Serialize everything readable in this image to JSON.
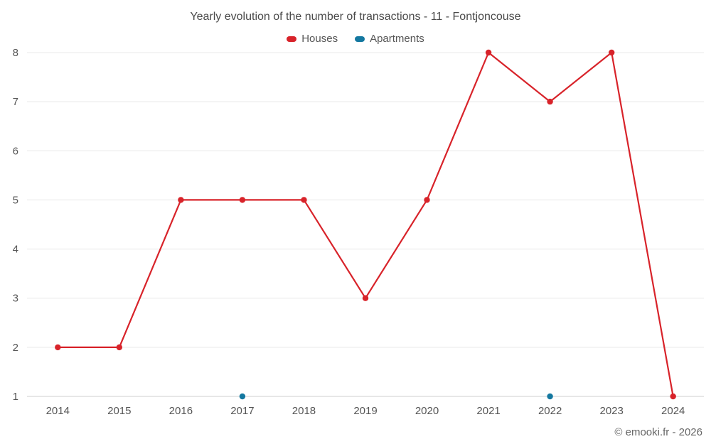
{
  "chart": {
    "title": "Yearly evolution of the number of transactions - 11 - Fontjoncouse",
    "footer": "© emooki.fr - 2026"
  },
  "chart_data": {
    "type": "line",
    "title": "Yearly evolution of the number of transactions - 11 - Fontjoncouse",
    "categories": [
      "2014",
      "2015",
      "2016",
      "2017",
      "2018",
      "2019",
      "2020",
      "2021",
      "2022",
      "2023",
      "2024"
    ],
    "series": [
      {
        "name": "Houses",
        "color": "#d8232a",
        "values": [
          2,
          2,
          5,
          5,
          5,
          3,
          5,
          8,
          7,
          8,
          1
        ]
      },
      {
        "name": "Apartments",
        "color": "#1478a0",
        "values": [
          null,
          null,
          null,
          1,
          null,
          null,
          null,
          null,
          1,
          null,
          null
        ]
      }
    ],
    "xlabel": "",
    "ylabel": "",
    "ylim": [
      1,
      8
    ],
    "yticks": [
      1,
      2,
      3,
      4,
      5,
      6,
      7,
      8
    ],
    "grid": true,
    "legend_position": "top"
  },
  "colors": {
    "houses": "#d8232a",
    "apartments": "#1478a0",
    "gridline": "#e8e8e8",
    "axis_line": "#cfcfcf",
    "axis_label": "#555555",
    "title_text": "#4a4a4a",
    "footer_text": "#666666"
  }
}
